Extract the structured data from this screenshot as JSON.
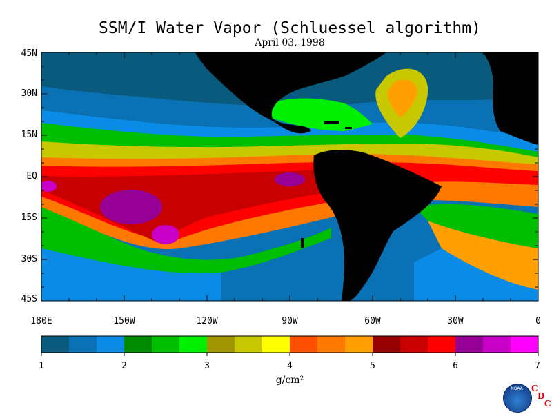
{
  "title": "SSM/I Water Vapor (Schluessel algorithm)",
  "subtitle": "April 03, 1998",
  "map": {
    "lat_labels": [
      "45N",
      "30N",
      "15N",
      "EQ",
      "15S",
      "30S",
      "45S"
    ],
    "lon_labels": [
      "180E",
      "150W",
      "120W",
      "90W",
      "60W",
      "30W",
      "0"
    ],
    "land_color": "#000000"
  },
  "colorbar": {
    "colors": [
      "#0a5a7d",
      "#0a72b4",
      "#0a8ce6",
      "#008c00",
      "#00be00",
      "#00f000",
      "#a09600",
      "#c8c800",
      "#ffff00",
      "#ff5000",
      "#ff7800",
      "#ffa000",
      "#960000",
      "#c80000",
      "#ff0000",
      "#960096",
      "#c800c8",
      "#ff00ff"
    ],
    "tick_labels": [
      "1",
      "2",
      "3",
      "4",
      "5",
      "6",
      "7"
    ],
    "units": "g/cm²"
  },
  "logo": {
    "noaa_text": "NOAA",
    "cdc_letters": [
      "C",
      "D",
      "C"
    ]
  }
}
